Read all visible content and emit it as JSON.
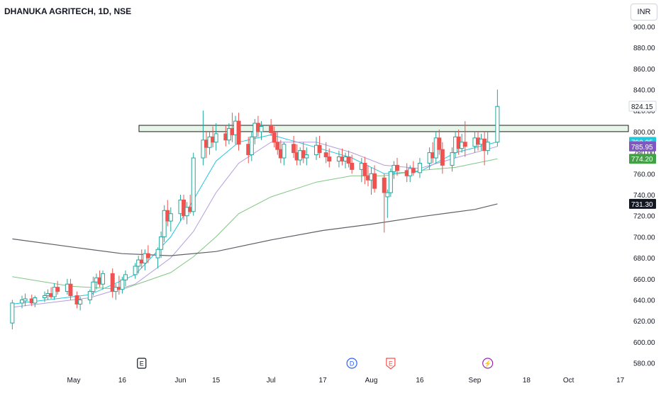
{
  "header": {
    "title": "DHANUKA AGRITECH, 1D, NSE",
    "currency": "INR"
  },
  "colors": {
    "up": "#26a69a",
    "down": "#ef5350",
    "ma_fast": "#26c6da",
    "ma_mid": "#b39ddb",
    "ma_slow": "#81c784",
    "ma_long": "#5d6066",
    "zone_fill": "#e8f5e9",
    "zone_stroke": "#1b1b1b"
  },
  "events": [
    {
      "label": "E",
      "date": "May 22",
      "color": "#131722",
      "shape": "square"
    },
    {
      "label": "D",
      "date": "Jul 26",
      "color": "#2962ff",
      "shape": "circle"
    },
    {
      "label": "E",
      "date": "Aug 7",
      "color": "#ef5350",
      "shape": "pentagon"
    },
    {
      "label": "⚡",
      "date": "Sep 6",
      "color": "#9c27b0",
      "shape": "circle"
    }
  ],
  "chart_data": {
    "type": "candlestick",
    "symbol": "DHANUKA AGRITECH",
    "interval": "1D",
    "exchange": "NSE",
    "y_axis": {
      "min": 575,
      "max": 905,
      "ticks": [
        580,
        600,
        620,
        640,
        660,
        680,
        700,
        720,
        740,
        760,
        780,
        800,
        820,
        840,
        860,
        880,
        900
      ]
    },
    "x_axis": {
      "ticks": [
        {
          "label": "May",
          "date": "May 1"
        },
        {
          "label": "16",
          "date": "May 16"
        },
        {
          "label": "Jun",
          "date": "Jun 3"
        },
        {
          "label": "15",
          "date": "Jun 14"
        },
        {
          "label": "Jul",
          "date": "Jul 1"
        },
        {
          "label": "17",
          "date": "Jul 17"
        },
        {
          "label": "Aug",
          "date": "Aug 1"
        },
        {
          "label": "16",
          "date": "Aug 16"
        },
        {
          "label": "Sep",
          "date": "Sep 2"
        },
        {
          "label": "18",
          "date": "Sep 18"
        },
        {
          "label": "Oct",
          "date": "Oct 1"
        },
        {
          "label": "17",
          "date": "Oct 17"
        }
      ]
    },
    "resistance_zone": {
      "top": 806,
      "bottom": 800
    },
    "price_labels": [
      {
        "value": "824.15",
        "kind": "last"
      },
      {
        "value": "790.25",
        "kind": "ma_fast"
      },
      {
        "value": "785.95",
        "kind": "ma_mid"
      },
      {
        "value": "774.20",
        "kind": "ma_slow"
      },
      {
        "value": "731.30",
        "kind": "ma_long"
      }
    ],
    "candles": [
      {
        "date": "Apr 12",
        "open": 618,
        "high": 640,
        "low": 612,
        "close": 637
      },
      {
        "date": "Apr 15",
        "open": 637,
        "high": 644,
        "low": 632,
        "close": 640
      },
      {
        "date": "Apr 16",
        "open": 639,
        "high": 646,
        "low": 634,
        "close": 641
      },
      {
        "date": "Apr 18",
        "open": 641,
        "high": 645,
        "low": 634,
        "close": 637
      },
      {
        "date": "Apr 19",
        "open": 637,
        "high": 644,
        "low": 633,
        "close": 642
      },
      {
        "date": "Apr 22",
        "open": 642,
        "high": 648,
        "low": 638,
        "close": 644
      },
      {
        "date": "Apr 23",
        "open": 644,
        "high": 650,
        "low": 640,
        "close": 646
      },
      {
        "date": "Apr 24",
        "open": 646,
        "high": 652,
        "low": 641,
        "close": 643
      },
      {
        "date": "Apr 25",
        "open": 643,
        "high": 656,
        "low": 640,
        "close": 652
      },
      {
        "date": "Apr 26",
        "open": 652,
        "high": 658,
        "low": 645,
        "close": 648
      },
      {
        "date": "Apr 29",
        "open": 648,
        "high": 660,
        "low": 645,
        "close": 655
      },
      {
        "date": "Apr 30",
        "open": 655,
        "high": 660,
        "low": 640,
        "close": 644
      },
      {
        "date": "May 2",
        "open": 644,
        "high": 648,
        "low": 632,
        "close": 636
      },
      {
        "date": "May 3",
        "open": 636,
        "high": 643,
        "low": 630,
        "close": 640
      },
      {
        "date": "May 6",
        "open": 640,
        "high": 650,
        "low": 636,
        "close": 648
      },
      {
        "date": "May 7",
        "open": 648,
        "high": 662,
        "low": 644,
        "close": 657
      },
      {
        "date": "May 8",
        "open": 657,
        "high": 665,
        "low": 650,
        "close": 661
      },
      {
        "date": "May 9",
        "open": 661,
        "high": 668,
        "low": 652,
        "close": 655
      },
      {
        "date": "May 10",
        "open": 655,
        "high": 668,
        "low": 650,
        "close": 665
      },
      {
        "date": "May 13",
        "open": 665,
        "high": 670,
        "low": 642,
        "close": 648
      },
      {
        "date": "May 14",
        "open": 648,
        "high": 655,
        "low": 640,
        "close": 652
      },
      {
        "date": "May 15",
        "open": 652,
        "high": 663,
        "low": 645,
        "close": 650
      },
      {
        "date": "May 16",
        "open": 650,
        "high": 662,
        "low": 646,
        "close": 659
      },
      {
        "date": "May 17",
        "open": 659,
        "high": 668,
        "low": 653,
        "close": 664
      },
      {
        "date": "May 20",
        "open": 664,
        "high": 675,
        "low": 660,
        "close": 672
      },
      {
        "date": "May 21",
        "open": 672,
        "high": 682,
        "low": 665,
        "close": 678
      },
      {
        "date": "May 22",
        "open": 678,
        "high": 688,
        "low": 670,
        "close": 675
      },
      {
        "date": "May 23",
        "open": 675,
        "high": 688,
        "low": 668,
        "close": 684
      },
      {
        "date": "May 24",
        "open": 684,
        "high": 692,
        "low": 675,
        "close": 680
      },
      {
        "date": "May 27",
        "open": 680,
        "high": 690,
        "low": 670,
        "close": 688
      },
      {
        "date": "May 28",
        "open": 688,
        "high": 705,
        "low": 680,
        "close": 700
      },
      {
        "date": "May 29",
        "open": 700,
        "high": 730,
        "low": 695,
        "close": 725
      },
      {
        "date": "May 30",
        "open": 725,
        "high": 735,
        "low": 710,
        "close": 715
      },
      {
        "date": "May 31",
        "open": 715,
        "high": 728,
        "low": 705,
        "close": 722
      },
      {
        "date": "Jun 3",
        "open": 722,
        "high": 740,
        "low": 715,
        "close": 735
      },
      {
        "date": "Jun 4",
        "open": 735,
        "high": 740,
        "low": 716,
        "close": 720
      },
      {
        "date": "Jun 5",
        "open": 720,
        "high": 733,
        "low": 712,
        "close": 728
      },
      {
        "date": "Jun 6",
        "open": 728,
        "high": 740,
        "low": 722,
        "close": 724
      },
      {
        "date": "Jun 7",
        "open": 724,
        "high": 780,
        "low": 720,
        "close": 775
      },
      {
        "date": "Jun 10",
        "open": 775,
        "high": 820,
        "low": 768,
        "close": 792
      },
      {
        "date": "Jun 11",
        "open": 792,
        "high": 800,
        "low": 775,
        "close": 785
      },
      {
        "date": "Jun 12",
        "open": 785,
        "high": 800,
        "low": 778,
        "close": 795
      },
      {
        "date": "Jun 13",
        "open": 795,
        "high": 805,
        "low": 785,
        "close": 790
      },
      {
        "date": "Jun 14",
        "open": 790,
        "high": 808,
        "low": 782,
        "close": 798
      },
      {
        "date": "Jun 17",
        "open": 798,
        "high": 806,
        "low": 786,
        "close": 792
      },
      {
        "date": "Jun 18",
        "open": 792,
        "high": 808,
        "low": 788,
        "close": 803
      },
      {
        "date": "Jun 19",
        "open": 803,
        "high": 818,
        "low": 790,
        "close": 797
      },
      {
        "date": "Jun 20",
        "open": 797,
        "high": 815,
        "low": 788,
        "close": 810
      },
      {
        "date": "Jun 21",
        "open": 810,
        "high": 818,
        "low": 782,
        "close": 788
      },
      {
        "date": "Jun 24",
        "open": 788,
        "high": 795,
        "low": 770,
        "close": 778
      },
      {
        "date": "Jun 25",
        "open": 778,
        "high": 800,
        "low": 772,
        "close": 795
      },
      {
        "date": "Jun 26",
        "open": 795,
        "high": 812,
        "low": 788,
        "close": 808
      },
      {
        "date": "Jun 27",
        "open": 808,
        "high": 815,
        "low": 795,
        "close": 800
      },
      {
        "date": "Jun 28",
        "open": 800,
        "high": 810,
        "low": 792,
        "close": 805
      },
      {
        "date": "Jul 1",
        "open": 805,
        "high": 812,
        "low": 796,
        "close": 799
      },
      {
        "date": "Jul 2",
        "open": 799,
        "high": 805,
        "low": 785,
        "close": 790
      },
      {
        "date": "Jul 3",
        "open": 790,
        "high": 800,
        "low": 778,
        "close": 783
      },
      {
        "date": "Jul 4",
        "open": 783,
        "high": 792,
        "low": 770,
        "close": 775
      },
      {
        "date": "Jul 5",
        "open": 775,
        "high": 790,
        "low": 768,
        "close": 788
      },
      {
        "date": "Jul 8",
        "open": 788,
        "high": 796,
        "low": 775,
        "close": 780
      },
      {
        "date": "Jul 9",
        "open": 780,
        "high": 788,
        "low": 768,
        "close": 773
      },
      {
        "date": "Jul 10",
        "open": 773,
        "high": 785,
        "low": 768,
        "close": 782
      },
      {
        "date": "Jul 11",
        "open": 782,
        "high": 790,
        "low": 770,
        "close": 775
      },
      {
        "date": "Jul 12",
        "open": 775,
        "high": 785,
        "low": 768,
        "close": 778
      },
      {
        "date": "Jul 15",
        "open": 778,
        "high": 795,
        "low": 773,
        "close": 787
      },
      {
        "date": "Jul 16",
        "open": 787,
        "high": 796,
        "low": 775,
        "close": 780
      },
      {
        "date": "Jul 18",
        "open": 780,
        "high": 790,
        "low": 770,
        "close": 776
      },
      {
        "date": "Jul 19",
        "open": 776,
        "high": 784,
        "low": 766,
        "close": 772
      },
      {
        "date": "Jul 22",
        "open": 772,
        "high": 782,
        "low": 766,
        "close": 776
      },
      {
        "date": "Jul 23",
        "open": 776,
        "high": 784,
        "low": 768,
        "close": 772
      },
      {
        "date": "Jul 24",
        "open": 772,
        "high": 780,
        "low": 765,
        "close": 776
      },
      {
        "date": "Jul 25",
        "open": 776,
        "high": 782,
        "low": 766,
        "close": 770
      },
      {
        "date": "Jul 26",
        "open": 770,
        "high": 778,
        "low": 760,
        "close": 764
      },
      {
        "date": "Jul 29",
        "open": 764,
        "high": 775,
        "low": 752,
        "close": 770
      },
      {
        "date": "Jul 30",
        "open": 770,
        "high": 776,
        "low": 750,
        "close": 758
      },
      {
        "date": "Jul 31",
        "open": 758,
        "high": 768,
        "low": 748,
        "close": 754
      },
      {
        "date": "Aug 1",
        "open": 754,
        "high": 766,
        "low": 740,
        "close": 760
      },
      {
        "date": "Aug 2",
        "open": 760,
        "high": 768,
        "low": 742,
        "close": 746
      },
      {
        "date": "Aug 5",
        "open": 756,
        "high": 760,
        "low": 704,
        "close": 742
      },
      {
        "date": "Aug 6",
        "open": 738,
        "high": 745,
        "low": 718,
        "close": 742
      },
      {
        "date": "Aug 7",
        "open": 742,
        "high": 765,
        "low": 738,
        "close": 762
      },
      {
        "date": "Aug 8",
        "open": 762,
        "high": 772,
        "low": 755,
        "close": 768
      },
      {
        "date": "Aug 9",
        "open": 768,
        "high": 775,
        "low": 758,
        "close": 763
      },
      {
        "date": "Aug 12",
        "open": 763,
        "high": 770,
        "low": 752,
        "close": 758
      },
      {
        "date": "Aug 13",
        "open": 758,
        "high": 768,
        "low": 752,
        "close": 765
      },
      {
        "date": "Aug 14",
        "open": 765,
        "high": 772,
        "low": 758,
        "close": 761
      },
      {
        "date": "Aug 16",
        "open": 761,
        "high": 775,
        "low": 756,
        "close": 770
      },
      {
        "date": "Aug 19",
        "open": 770,
        "high": 785,
        "low": 764,
        "close": 780
      },
      {
        "date": "Aug 20",
        "open": 780,
        "high": 790,
        "low": 770,
        "close": 775
      },
      {
        "date": "Aug 21",
        "open": 775,
        "high": 800,
        "low": 770,
        "close": 794
      },
      {
        "date": "Aug 22",
        "open": 794,
        "high": 802,
        "low": 778,
        "close": 783
      },
      {
        "date": "Aug 23",
        "open": 783,
        "high": 790,
        "low": 760,
        "close": 768
      },
      {
        "date": "Aug 26",
        "open": 768,
        "high": 785,
        "low": 762,
        "close": 780
      },
      {
        "date": "Aug 27",
        "open": 780,
        "high": 800,
        "low": 775,
        "close": 795
      },
      {
        "date": "Aug 28",
        "open": 795,
        "high": 802,
        "low": 778,
        "close": 784
      },
      {
        "date": "Aug 29",
        "open": 784,
        "high": 798,
        "low": 780,
        "close": 790
      },
      {
        "date": "Aug 30",
        "open": 790,
        "high": 810,
        "low": 776,
        "close": 786
      },
      {
        "date": "Sep 2",
        "open": 786,
        "high": 800,
        "low": 780,
        "close": 794
      },
      {
        "date": "Sep 3",
        "open": 794,
        "high": 800,
        "low": 782,
        "close": 788
      },
      {
        "date": "Sep 4",
        "open": 788,
        "high": 798,
        "low": 782,
        "close": 793
      },
      {
        "date": "Sep 5",
        "open": 793,
        "high": 800,
        "low": 768,
        "close": 782
      },
      {
        "date": "Sep 6",
        "open": 782,
        "high": 800,
        "low": 778,
        "close": 790
      },
      {
        "date": "Sep 9",
        "open": 790,
        "high": 840,
        "low": 786,
        "close": 824
      }
    ],
    "moving_averages": [
      {
        "kind": "ma_fast",
        "last": 790.25,
        "points": [
          [
            "Apr 12",
            636
          ],
          [
            "May 6",
            645
          ],
          [
            "May 20",
            664
          ],
          [
            "May 31",
            700
          ],
          [
            "Jun 7",
            735
          ],
          [
            "Jun 14",
            772
          ],
          [
            "Jun 21",
            790
          ],
          [
            "Jul 1",
            797
          ],
          [
            "Jul 15",
            785
          ],
          [
            "Jul 26",
            775
          ],
          [
            "Aug 5",
            760
          ],
          [
            "Aug 16",
            762
          ],
          [
            "Aug 27",
            780
          ],
          [
            "Sep 9",
            790.25
          ]
        ]
      },
      {
        "kind": "ma_mid",
        "last": 785.95,
        "points": [
          [
            "Apr 12",
            633
          ],
          [
            "May 6",
            642
          ],
          [
            "May 20",
            655
          ],
          [
            "May 31",
            680
          ],
          [
            "Jun 7",
            705
          ],
          [
            "Jun 14",
            742
          ],
          [
            "Jun 21",
            770
          ],
          [
            "Jul 1",
            790
          ],
          [
            "Jul 15",
            790
          ],
          [
            "Jul 26",
            780
          ],
          [
            "Aug 5",
            768
          ],
          [
            "Aug 16",
            765
          ],
          [
            "Aug 27",
            775
          ],
          [
            "Sep 9",
            785.95
          ]
        ]
      },
      {
        "kind": "ma_slow",
        "last": 774.2,
        "points": [
          [
            "Apr 12",
            662
          ],
          [
            "Apr 30",
            653
          ],
          [
            "May 16",
            650
          ],
          [
            "May 31",
            666
          ],
          [
            "Jun 7",
            681
          ],
          [
            "Jun 14",
            700
          ],
          [
            "Jun 21",
            722
          ],
          [
            "Jul 1",
            738
          ],
          [
            "Jul 15",
            752
          ],
          [
            "Jul 26",
            758
          ],
          [
            "Aug 5",
            758
          ],
          [
            "Aug 16",
            763
          ],
          [
            "Aug 27",
            766
          ],
          [
            "Sep 9",
            774.2
          ]
        ]
      },
      {
        "kind": "ma_long",
        "last": 731.3,
        "points": [
          [
            "Apr 12",
            698
          ],
          [
            "May 1",
            690
          ],
          [
            "May 16",
            684
          ],
          [
            "May 31",
            682
          ],
          [
            "Jun 14",
            686
          ],
          [
            "Jul 1",
            697
          ],
          [
            "Jul 17",
            706
          ],
          [
            "Aug 1",
            712
          ],
          [
            "Aug 16",
            719
          ],
          [
            "Sep 2",
            726
          ],
          [
            "Sep 9",
            731.3
          ]
        ]
      }
    ]
  }
}
